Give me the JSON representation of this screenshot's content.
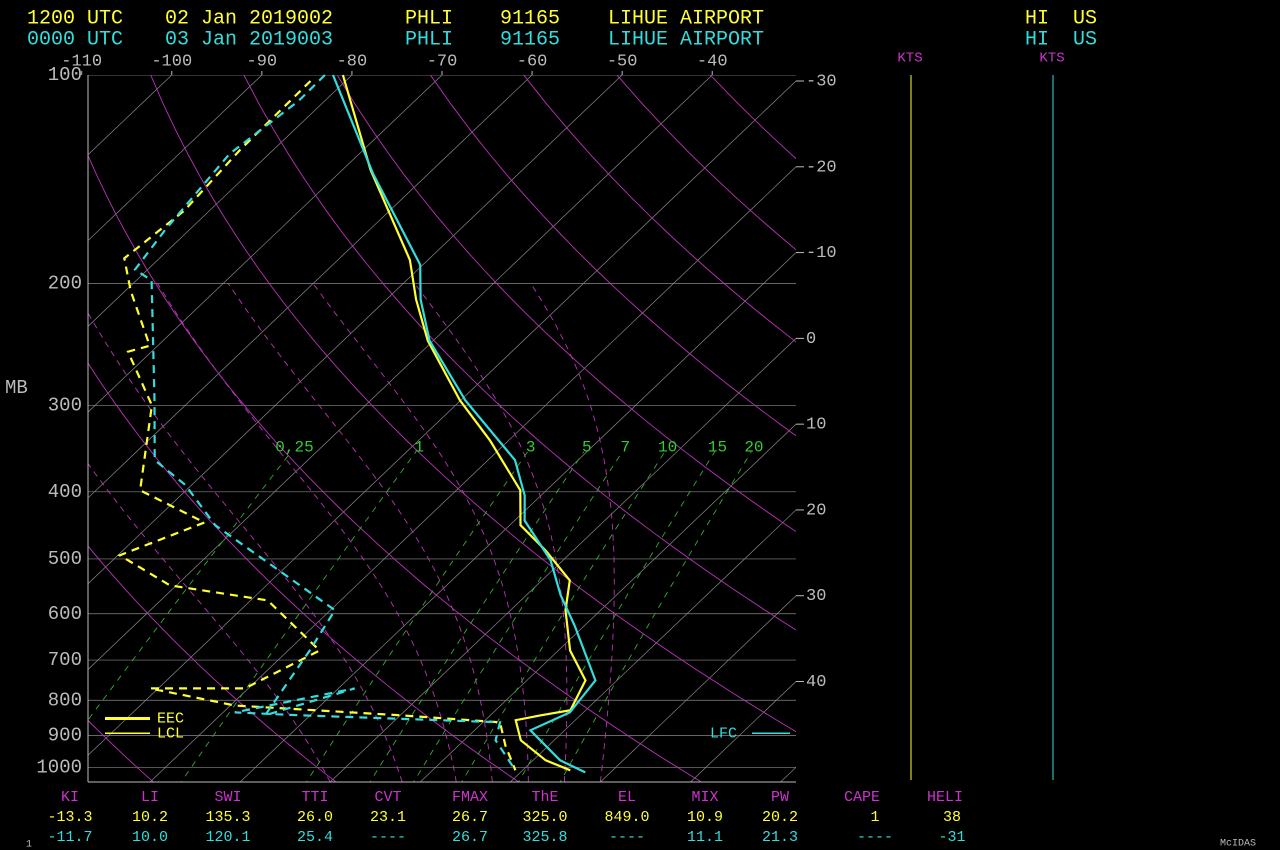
{
  "chart_data": {
    "type": "skewt",
    "soundings": [
      {
        "time": "1200 UTC",
        "date": "02 Jan 2019002",
        "station": "PHLI",
        "id": "91165",
        "name": "LIHUE AIRPORT",
        "country": "HI  US",
        "color": "#ffff33",
        "temperature": {
          "p": [
            100,
            137,
            185,
            211,
            242,
            295,
            337,
            398,
            447,
            486,
            537,
            593,
            678,
            749,
            827,
            841,
            855,
            914,
            977,
            1010
          ],
          "t": [
            -81.0,
            -66.9,
            -52.0,
            -46.7,
            -40.6,
            -30.1,
            -22.1,
            -12.9,
            -8.8,
            -3.1,
            3.1,
            6.1,
            11.3,
            16.5,
            18.3,
            15.6,
            13.4,
            16.3,
            21.4,
            25.3
          ]
        },
        "dewpoint": {
          "p": [
            102,
            128,
            157,
            184,
            205,
            246,
            251,
            300,
            398,
            443,
            494,
            546,
            574,
            678,
            769,
            769,
            814,
            841,
            861,
            930,
            1010
          ],
          "t": [
            -83.9,
            -83.7,
            -82.8,
            -83.9,
            -79.4,
            -70.9,
            -72.6,
            -63.7,
            -55.1,
            -44.2,
            -49.8,
            -40.7,
            -28.1,
            -16.5,
            -20.4,
            -30.9,
            -19.5,
            0.0,
            11.9,
            15.2,
            19.2
          ]
        },
        "indices": [
          "-13.3",
          "10.2",
          "135.3",
          "26.0",
          "23.1",
          "26.7",
          "325.0",
          "849.0",
          "10.9",
          "20.2",
          "1",
          "38"
        ]
      },
      {
        "time": "0000 UTC",
        "date": "03 Jan 2019003",
        "station": "PHLI",
        "id": "91165",
        "name": "LIHUE AIRPORT",
        "country": "HI  US",
        "color": "#33dddd",
        "temperature": {
          "p": [
            100,
            139,
            188,
            211,
            242,
            295,
            360,
            405,
            440,
            502,
            564,
            624,
            749,
            833,
            884,
            977,
            1017
          ],
          "t": [
            -82.1,
            -66.1,
            -50.3,
            -46.2,
            -40.4,
            -29.5,
            -17.0,
            -11.8,
            -8.9,
            -1.4,
            3.8,
            8.9,
            17.6,
            18.5,
            16.2,
            23.0,
            27.2
          ]
        },
        "dewpoint": {
          "p": [
            100,
            109,
            130,
            167,
            191,
            198,
            295,
            360,
            391,
            447,
            593,
            678,
            841,
            769,
            833,
            841,
            861,
            914,
            1010
          ],
          "t": [
            -83.0,
            -82.9,
            -84.4,
            -82.7,
            -81.4,
            -78.3,
            -64.0,
            -57.0,
            -50.7,
            -42.7,
            -19.5,
            -17.6,
            -15.0,
            -8.2,
            -18.7,
            -11.1,
            11.9,
            13.5,
            19.2
          ]
        },
        "indices": [
          "-11.7",
          "10.0",
          "120.1",
          "25.4",
          "----",
          "26.7",
          "325.8",
          "----",
          "11.1",
          "21.3",
          "----",
          "-31"
        ]
      }
    ],
    "index_names": [
      "KI",
      "LI",
      "SWI",
      "TTI",
      "CVT",
      "FMAX",
      "ThE",
      "EL",
      "MIX",
      "PW",
      "CAPE",
      "HELI"
    ],
    "ylabel": "MB",
    "log_y": true,
    "ylim": [
      100,
      1050
    ],
    "yticks": [
      100,
      200,
      300,
      400,
      500,
      600,
      700,
      800,
      900,
      1000
    ],
    "xlim": [
      -109.3,
      -30.7
    ],
    "xticks": [
      -110,
      -100,
      -90,
      -80,
      -70,
      -60,
      -50,
      -40
    ],
    "skew_ticks": [
      -30,
      -20,
      -10,
      0,
      10,
      20,
      30,
      40
    ],
    "mixing_ratios": [
      {
        "value": 0.25,
        "label": "0,25"
      },
      1,
      3,
      5,
      7,
      10,
      15,
      20
    ],
    "levels": [
      {
        "label": "EEC",
        "pressure": 850,
        "color": "#ffff33"
      },
      {
        "label": "LCL",
        "pressure": 893,
        "color": "#ffff33"
      },
      {
        "label": "LFC",
        "pressure": 893,
        "color": "#33dddd"
      }
    ],
    "wind_panels": [
      {
        "unit": "KTS"
      },
      {
        "unit": "KTS"
      }
    ],
    "footer_left": "1",
    "footer_right": "McIDAS"
  }
}
